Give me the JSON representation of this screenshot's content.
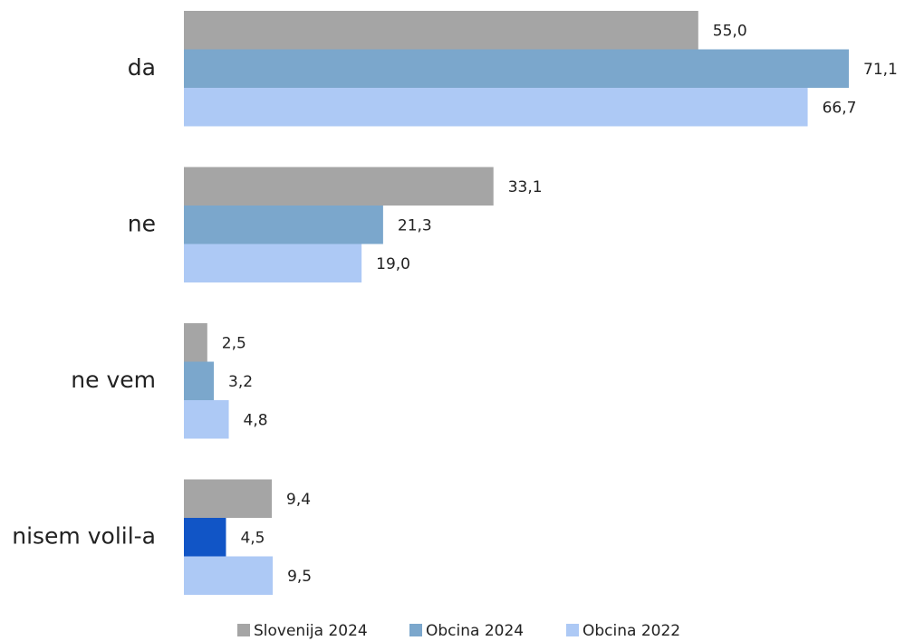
{
  "chart_data": {
    "type": "hbar",
    "categories": [
      "da",
      "ne",
      "ne vem",
      "nisem volil-a"
    ],
    "series": [
      {
        "name": "Slovenija 2024",
        "color": "#a5a5a5",
        "values": [
          55.0,
          33.1,
          2.5,
          9.4
        ],
        "value_labels": [
          "55,0",
          "33,1",
          "2,5",
          "9,4"
        ]
      },
      {
        "name": "Obcina 2024",
        "color": "#7ba7cc",
        "colors": [
          "#7ba7cc",
          "#7ba7cc",
          "#7ba7cc",
          "#1155c6"
        ],
        "values": [
          71.1,
          21.3,
          3.2,
          4.5
        ],
        "value_labels": [
          "71,1",
          "21,3",
          "3,2",
          "4,5"
        ]
      },
      {
        "name": "Obcina 2022",
        "color": "#adc9f5",
        "values": [
          66.7,
          19.0,
          4.8,
          9.5
        ],
        "value_labels": [
          "66,7",
          "19,0",
          "4,8",
          "9,5"
        ]
      }
    ],
    "legend": "bottom"
  }
}
